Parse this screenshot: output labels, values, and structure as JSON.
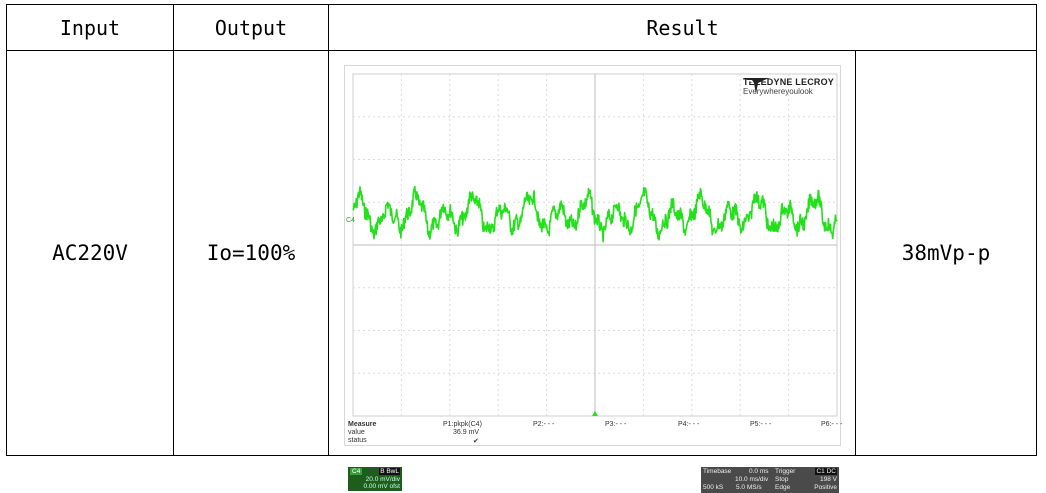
{
  "headers": {
    "input": "Input",
    "output": "Output",
    "result": "Result"
  },
  "row": {
    "input": "AC220V",
    "output": "Io=100%",
    "result_value": "38mVp-p"
  },
  "scope": {
    "logo_brand": "TELEDYNE LECROY",
    "logo_tagline": "Everywhereyoulook",
    "channel_marker": "C4",
    "trace_color": "#22e01a",
    "measure": {
      "label": "Measure",
      "value_label": "value",
      "status_label": "status",
      "p1_name": "P1:pkpk(C4)",
      "p1_value": "36.9 mV",
      "p1_status": "✔",
      "p2": "P2:- - -",
      "p3": "P3:- - -",
      "p4": "P4:- - -",
      "p5": "P5:- - -",
      "p6": "P6:- - -"
    },
    "channel_box": {
      "name": "C4",
      "flags": "B BwL",
      "vdiv": "20.0 mV/div",
      "offset": "0.00 mV ofst"
    },
    "timebase": {
      "label": "Timebase",
      "delay": "0.0 ms",
      "tdiv": "10.0 ms/div",
      "samples": "500 kS",
      "rate": "5.0 MS/s",
      "trigger_label": "Trigger",
      "trigger_ch": "C1 DC",
      "mode": "Stop",
      "level": "198 V",
      "type": "Edge",
      "slope": "Positive"
    }
  }
}
